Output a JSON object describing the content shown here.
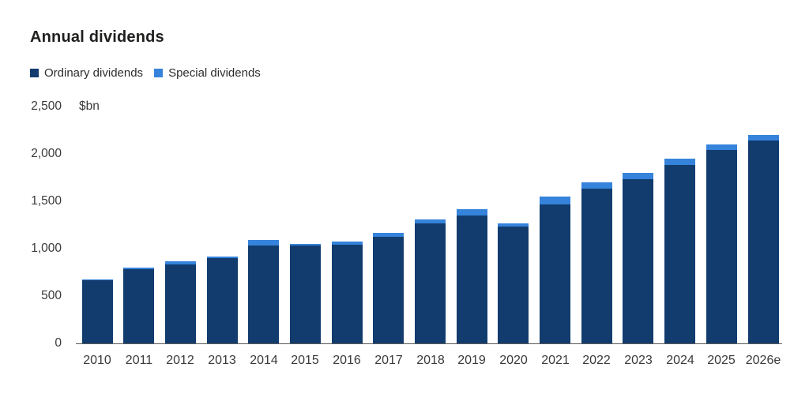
{
  "header": {
    "title": "Annual dividends",
    "unit_label": "$bn"
  },
  "legend": {
    "items": [
      {
        "label": "Ordinary dividends",
        "color": "#123c6e"
      },
      {
        "label": "Special dividends",
        "color": "#3583db"
      }
    ]
  },
  "axes": {
    "y_tick_labels": [
      "0",
      "500",
      "1,000",
      "1,500",
      "2,000",
      "2,500"
    ],
    "y_tick_values": [
      0,
      500,
      1000,
      1500,
      2000,
      2500
    ]
  },
  "chart_data": {
    "type": "bar",
    "stacked": true,
    "title": "Annual dividends",
    "ylabel": "$bn",
    "ylim": [
      0,
      2500
    ],
    "yticks": [
      0,
      500,
      1000,
      1500,
      2000,
      2500
    ],
    "grid": false,
    "legend_position": "top-left",
    "categories": [
      "2010",
      "2011",
      "2012",
      "2013",
      "2014",
      "2015",
      "2016",
      "2017",
      "2018",
      "2019",
      "2020",
      "2021",
      "2022",
      "2023",
      "2024",
      "2025",
      "2026e"
    ],
    "series": [
      {
        "name": "Ordinary dividends",
        "color": "#123c6e",
        "values": [
          665,
          785,
          835,
          900,
          1035,
          1030,
          1040,
          1125,
          1265,
          1350,
          1230,
          1470,
          1635,
          1735,
          1885,
          2040,
          2145
        ]
      },
      {
        "name": "Special dividends",
        "color": "#3583db",
        "values": [
          10,
          15,
          35,
          15,
          55,
          15,
          35,
          40,
          40,
          65,
          35,
          85,
          65,
          65,
          65,
          60,
          55
        ]
      }
    ],
    "totals": [
      675,
      800,
      870,
      915,
      1090,
      1045,
      1075,
      1165,
      1305,
      1415,
      1265,
      1555,
      1700,
      1800,
      1950,
      2100,
      2200
    ],
    "axis_color": "#5a5a5a",
    "text_color": "#3a3a3a"
  }
}
